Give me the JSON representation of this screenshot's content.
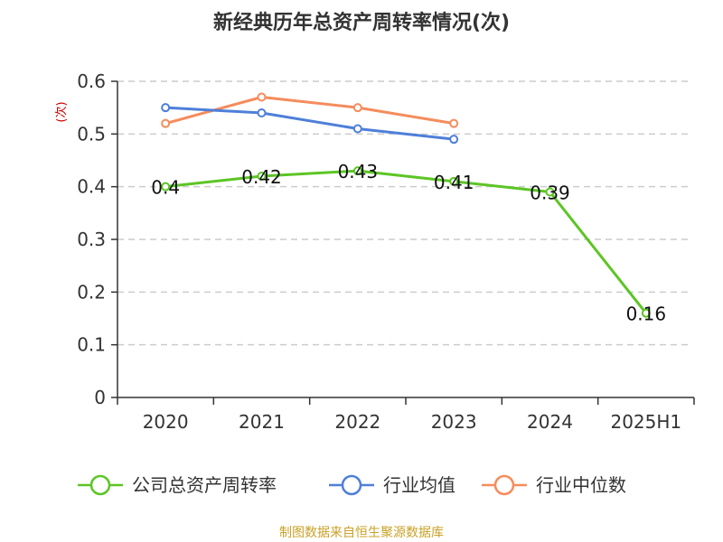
{
  "chart_data": {
    "type": "line",
    "title": "新经典历年总资产周转率情况(次)",
    "ylabel": "(次)",
    "xlabel": "",
    "categories": [
      "2020",
      "2021",
      "2022",
      "2023",
      "2024",
      "2025H1"
    ],
    "ylim": [
      0,
      0.6
    ],
    "yticks": [
      "0",
      "0.1",
      "0.2",
      "0.3",
      "0.4",
      "0.5",
      "0.6"
    ],
    "grid": true,
    "legend_position": "bottom",
    "series": [
      {
        "name": "公司总资产周转率",
        "values": [
          0.4,
          0.42,
          0.43,
          0.41,
          0.39,
          0.16
        ],
        "labels": [
          "0.4",
          "0.42",
          "0.43",
          "0.41",
          "0.39",
          "0.16"
        ],
        "color": "#5CC524",
        "show_labels": true
      },
      {
        "name": "行业均值",
        "values": [
          0.55,
          0.54,
          0.51,
          0.49,
          null,
          null
        ],
        "color": "#4E7FD9",
        "show_labels": false
      },
      {
        "name": "行业中位数",
        "values": [
          0.52,
          0.57,
          0.55,
          0.52,
          null,
          null
        ],
        "color": "#F58C5C",
        "show_labels": false
      }
    ]
  },
  "footer": {
    "source": "制图数据来自恒生聚源数据库",
    "source_color": "#C9A227"
  },
  "colors": {
    "unit_label": "#CC0000",
    "grid": "#CCCCCC",
    "axis": "#333333"
  }
}
